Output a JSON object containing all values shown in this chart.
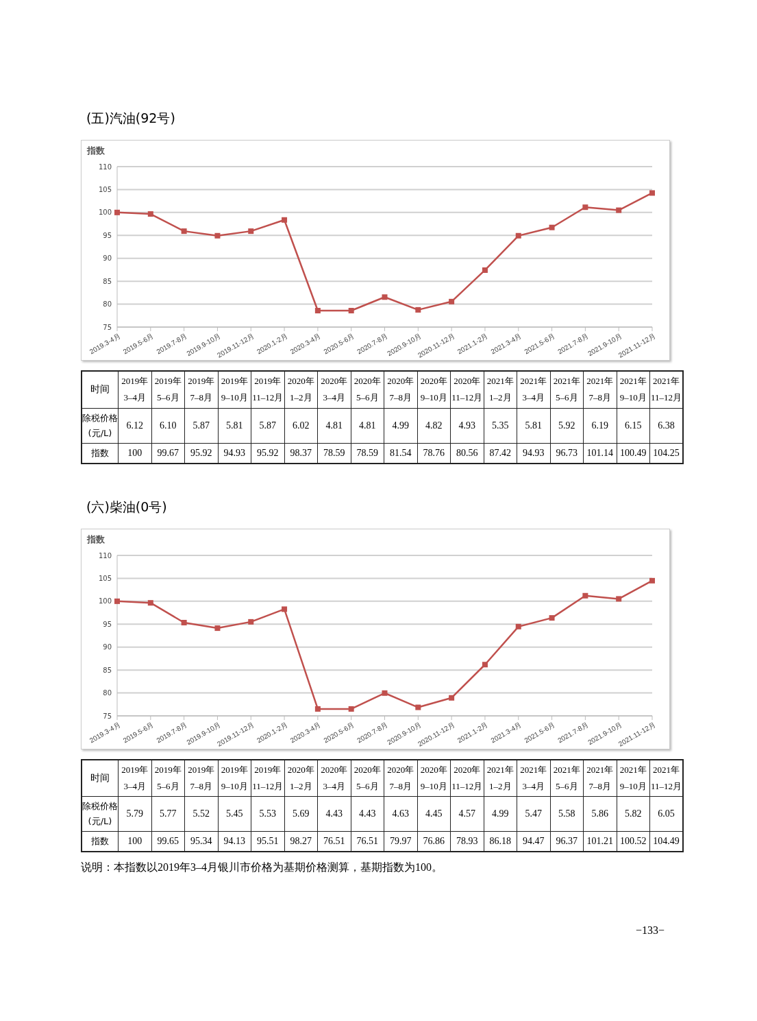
{
  "chart_data": [
    {
      "type": "line",
      "title": "(五)汽油(92号)",
      "ylabel": "指数",
      "categories": [
        "2019.3-4月",
        "2019.5-6月",
        "2019.7-8月",
        "2019.9-10月",
        "2019.11-12月",
        "2020.1-2月",
        "2020.3-4月",
        "2020.5-6月",
        "2020.7-8月",
        "2020.9-10月",
        "2020.11-12月",
        "2021.1-2月",
        "2021.3-4月",
        "2021.5-6月",
        "2021.7-8月",
        "2021.9-10月",
        "2021.11-12月"
      ],
      "series": [
        {
          "color": "#c0504d",
          "values": [
            100,
            99.67,
            95.92,
            94.93,
            95.92,
            98.37,
            78.59,
            78.59,
            81.54,
            78.76,
            80.56,
            87.42,
            94.93,
            96.73,
            101.14,
            100.49,
            104.25
          ]
        }
      ],
      "ylim": [
        75,
        110
      ],
      "yticks": [
        75,
        80,
        85,
        90,
        95,
        100,
        105,
        110
      ],
      "grid": "y",
      "marker": "square",
      "legend": false
    },
    {
      "type": "other",
      "xlabel": "时间",
      "categories": [
        "2019年 3–4月",
        "2019年 5–6月",
        "2019年 7–8月",
        "2019年 9–10月",
        "2019年 11–12月",
        "2020年 1–2月",
        "2020年 3–4月",
        "2020年 5–6月",
        "2020年 7–8月",
        "2020年 9–10月",
        "2020年 11–12月",
        "2021年 1–2月",
        "2021年 3–4月",
        "2021年 5–6月",
        "2021年 7–8月",
        "2021年 9–10月",
        "2021年 11–12月"
      ],
      "series": [
        {
          "name": "除税价格(元/L)",
          "values": [
            6.12,
            6.1,
            5.87,
            5.81,
            5.87,
            6.02,
            4.81,
            4.81,
            4.99,
            4.82,
            4.93,
            5.35,
            5.81,
            5.92,
            6.19,
            6.15,
            6.38
          ],
          "value_labels": [
            "6.12",
            "6.10",
            "5.87",
            "5.81",
            "5.87",
            "6.02",
            "4.81",
            "4.81",
            "4.99",
            "4.82",
            "4.93",
            "5.35",
            "5.81",
            "5.92",
            "6.19",
            "6.15",
            "6.38"
          ]
        },
        {
          "name": "指数",
          "values": [
            100,
            99.67,
            95.92,
            94.93,
            95.92,
            98.37,
            78.59,
            78.59,
            81.54,
            78.76,
            80.56,
            87.42,
            94.93,
            96.73,
            101.14,
            100.49,
            104.25
          ]
        }
      ],
      "data_labels": true
    },
    {
      "type": "line",
      "title": "(六)柴油(0号)",
      "ylabel": "指数",
      "categories": [
        "2019.3-4月",
        "2019.5-6月",
        "2019.7-8月",
        "2019.9-10月",
        "2019.11-12月",
        "2020.1-2月",
        "2020.3-4月",
        "2020.5-6月",
        "2020.7-8月",
        "2020.9-10月",
        "2020.11-12月",
        "2021.1-2月",
        "2021.3-4月",
        "2021.5-6月",
        "2021.7-8月",
        "2021.9-10月",
        "2021.11-12月"
      ],
      "series": [
        {
          "color": "#c0504d",
          "values": [
            100,
            99.65,
            95.34,
            94.13,
            95.51,
            98.27,
            76.51,
            76.51,
            79.97,
            76.86,
            78.93,
            86.18,
            94.47,
            96.37,
            101.21,
            100.52,
            104.49
          ]
        }
      ],
      "ylim": [
        75,
        110
      ],
      "yticks": [
        75,
        80,
        85,
        90,
        95,
        100,
        105,
        110
      ],
      "grid": "y",
      "marker": "square",
      "legend": false
    },
    {
      "type": "other",
      "xlabel": "时间",
      "categories": [
        "2019年 3–4月",
        "2019年 5–6月",
        "2019年 7–8月",
        "2019年 9–10月",
        "2019年 11–12月",
        "2020年 1–2月",
        "2020年 3–4月",
        "2020年 5–6月",
        "2020年 7–8月",
        "2020年 9–10月",
        "2020年 11–12月",
        "2021年 1–2月",
        "2021年 3–4月",
        "2021年 5–6月",
        "2021年 7–8月",
        "2021年 9–10月",
        "2021年 11–12月"
      ],
      "series": [
        {
          "name": "除税价格(元/L)",
          "values": [
            5.79,
            5.77,
            5.52,
            5.45,
            5.53,
            5.69,
            4.43,
            4.43,
            4.63,
            4.45,
            4.57,
            4.99,
            5.47,
            5.58,
            5.86,
            5.82,
            6.05
          ],
          "value_labels": [
            "5.79",
            "5.77",
            "5.52",
            "5.45",
            "5.53",
            "5.69",
            "4.43",
            "4.43",
            "4.63",
            "4.45",
            "4.57",
            "4.99",
            "5.47",
            "5.58",
            "5.86",
            "5.82",
            "6.05"
          ]
        },
        {
          "name": "指数",
          "values": [
            100,
            99.65,
            95.34,
            94.13,
            95.51,
            98.27,
            76.51,
            76.51,
            79.97,
            76.86,
            78.93,
            86.18,
            94.47,
            96.37,
            101.21,
            100.52,
            104.49
          ]
        }
      ],
      "data_labels": true,
      "annotations": [
        "说明：本指数以2019年3–4月银川市价格为基期价格测算，基期指数为100。",
        "−133−"
      ]
    }
  ]
}
